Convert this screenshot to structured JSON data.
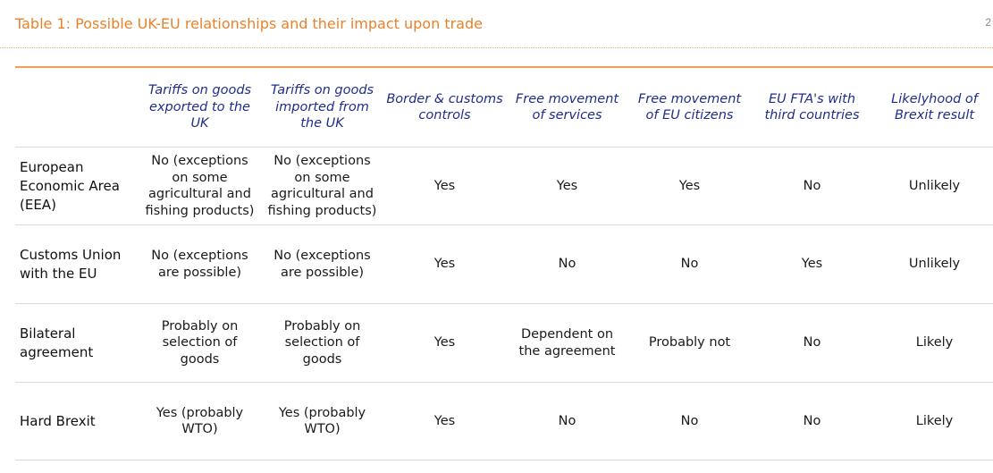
{
  "title": "Table 1: Possible UK-EU relationships and their impact upon trade",
  "page_mark": "2",
  "table": {
    "headers": [
      "",
      "Tariffs on goods exported to the UK",
      "Tariffs on goods imported from the UK",
      "Border & customs controls",
      "Free movement of services",
      "Free movement of EU citizens",
      "EU FTA's with third countries",
      "Likelyhood of Brexit result"
    ],
    "rows": [
      {
        "label": "European Economic Area (EEA)",
        "cells": [
          "No (exceptions on some agricultural and fishing products)",
          "No (exceptions on some agricultural and fishing products)",
          "Yes",
          "Yes",
          "Yes",
          "No",
          "Unlikely"
        ]
      },
      {
        "label": "Customs Union with the EU",
        "cells": [
          "No (exceptions are possible)",
          "No (exceptions are possible)",
          "Yes",
          "No",
          "No",
          "Yes",
          "Unlikely"
        ]
      },
      {
        "label": "Bilateral agreement",
        "cells": [
          "Probably on selection of goods",
          "Probably on selection of goods",
          "Yes",
          "Dependent on the agreement",
          "Probably not",
          "No",
          "Likely"
        ]
      },
      {
        "label": "Hard Brexit",
        "cells": [
          "Yes (probably WTO)",
          "Yes (probably WTO)",
          "Yes",
          "No",
          "No",
          "No",
          "Likely"
        ]
      }
    ]
  }
}
